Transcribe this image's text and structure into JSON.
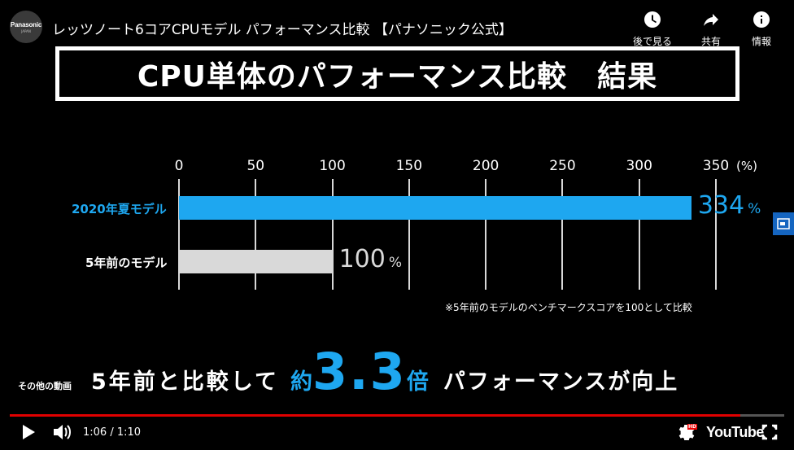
{
  "header": {
    "channel_brand": "Panasonic",
    "channel_sub": "JAPAN",
    "video_title": "レッツノート6コアCPUモデル パフォーマンス比較 【パナソニック公式】",
    "actions": [
      {
        "label": "後で見る",
        "icon": "clock-icon"
      },
      {
        "label": "共有",
        "icon": "share-icon"
      },
      {
        "label": "情報",
        "icon": "info-icon"
      }
    ]
  },
  "slide": {
    "title": "CPU単体のパフォーマンス比較　結果",
    "footnote": "※5年前のモデルのベンチマークスコアを100として比較",
    "banner_prefix": "5年前と比較して",
    "banner_approx": "約",
    "banner_multiplier": "3.3",
    "banner_bai": "倍",
    "banner_suffix": "パフォーマンスが向上",
    "other_videos": "その他の動画"
  },
  "chart_data": {
    "type": "bar",
    "orientation": "horizontal",
    "xlim": [
      0,
      350
    ],
    "x_unit": "(%)",
    "ticks": [
      "0",
      "50",
      "100",
      "150",
      "200",
      "250",
      "300",
      "350"
    ],
    "categories": [
      "2020年夏モデル",
      "5年前のモデル"
    ],
    "values": [
      334,
      100
    ],
    "value_labels": [
      "334",
      "100"
    ],
    "value_suffix": "%",
    "colors": [
      "#1ea7f0",
      "#d9d9d9"
    ],
    "grid": true
  },
  "player": {
    "current_time": "1:06",
    "separator": " / ",
    "duration": "1:10",
    "progress": 0.943,
    "logo": "YouTube",
    "hd_badge": "HD",
    "accent": "#e00000"
  }
}
